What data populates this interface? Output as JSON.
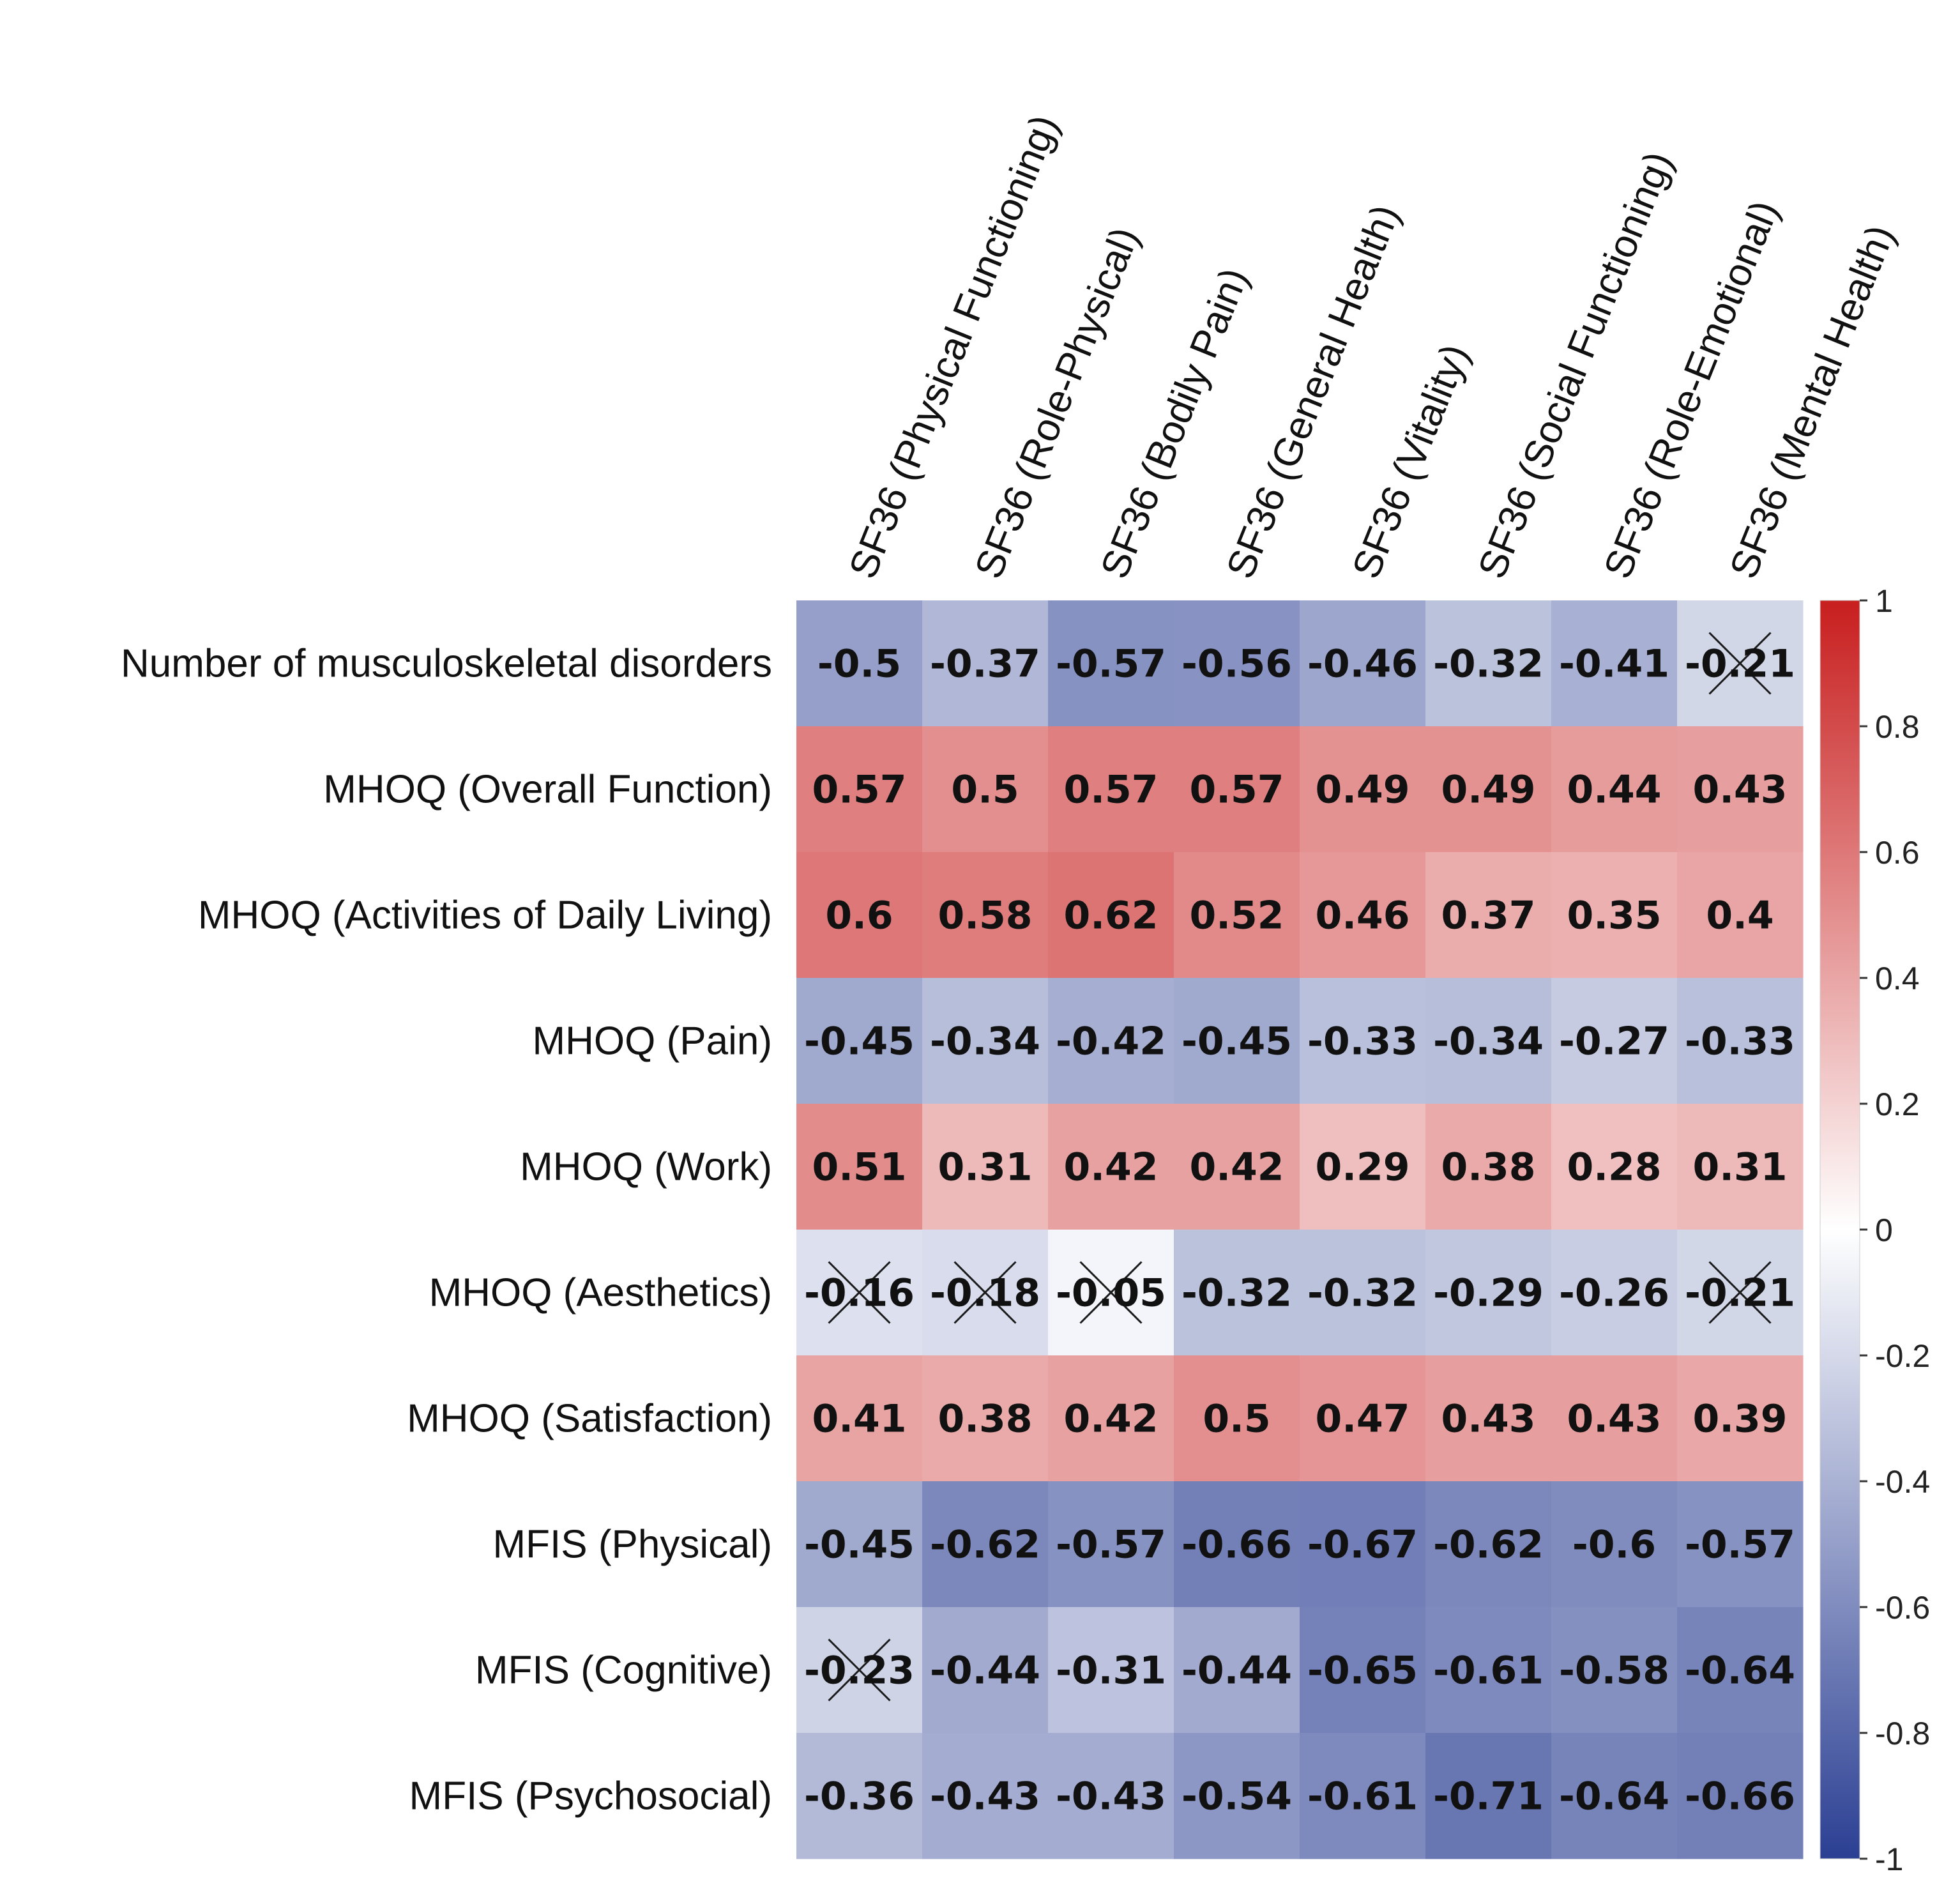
{
  "chart_data": {
    "type": "heatmap",
    "title": "",
    "columns": [
      "SF36 (Physical Functioning)",
      "SF36 (Role-Physical)",
      "SF36 (Bodily Pain)",
      "SF36 (General Health)",
      "SF36 (Vitality)",
      "SF36 (Social Functioning)",
      "SF36 (Role-Emotional)",
      "SF36 (Mental Health)"
    ],
    "rows": [
      "Number of musculoskeletal disorders",
      "MHOQ (Overall Function)",
      "MHOQ (Activities of Daily Living)",
      "MHOQ (Pain)",
      "MHOQ (Work)",
      "MHOQ (Aesthetics)",
      "MHOQ (Satisfaction)",
      "MFIS (Physical)",
      "MFIS (Cognitive)",
      "MFIS (Psychosocial)"
    ],
    "values": [
      [
        -0.5,
        -0.37,
        -0.57,
        -0.56,
        -0.46,
        -0.32,
        -0.41,
        -0.21
      ],
      [
        0.57,
        0.5,
        0.57,
        0.57,
        0.49,
        0.49,
        0.44,
        0.43
      ],
      [
        0.6,
        0.58,
        0.62,
        0.52,
        0.46,
        0.37,
        0.35,
        0.4
      ],
      [
        -0.45,
        -0.34,
        -0.42,
        -0.45,
        -0.33,
        -0.34,
        -0.27,
        -0.33
      ],
      [
        0.51,
        0.31,
        0.42,
        0.42,
        0.29,
        0.38,
        0.28,
        0.31
      ],
      [
        -0.16,
        -0.18,
        -0.05,
        -0.32,
        -0.32,
        -0.29,
        -0.26,
        -0.21
      ],
      [
        0.41,
        0.38,
        0.42,
        0.5,
        0.47,
        0.43,
        0.43,
        0.39
      ],
      [
        -0.45,
        -0.62,
        -0.57,
        -0.66,
        -0.67,
        -0.62,
        -0.6,
        -0.57
      ],
      [
        -0.23,
        -0.44,
        -0.31,
        -0.44,
        -0.65,
        -0.61,
        -0.58,
        -0.64
      ],
      [
        -0.36,
        -0.43,
        -0.43,
        -0.54,
        -0.61,
        -0.71,
        -0.64,
        -0.66
      ]
    ],
    "crossed_out": [
      [
        0,
        7
      ],
      [
        5,
        0
      ],
      [
        5,
        1
      ],
      [
        5,
        2
      ],
      [
        5,
        7
      ],
      [
        8,
        0
      ]
    ],
    "colorbar": {
      "range": [
        -1,
        1
      ],
      "ticks": [
        "1",
        "0.8",
        "0.6",
        "0.4",
        "0.2",
        "0",
        "-0.2",
        "-0.4",
        "-0.6",
        "-0.8",
        "-1"
      ],
      "tick_values": [
        1,
        0.8,
        0.6,
        0.4,
        0.2,
        0,
        -0.2,
        -0.4,
        -0.6,
        -0.8,
        -1
      ],
      "low_color": "#2b3f93",
      "mid_color": "#ffffff",
      "high_color": "#c81e1e"
    }
  }
}
